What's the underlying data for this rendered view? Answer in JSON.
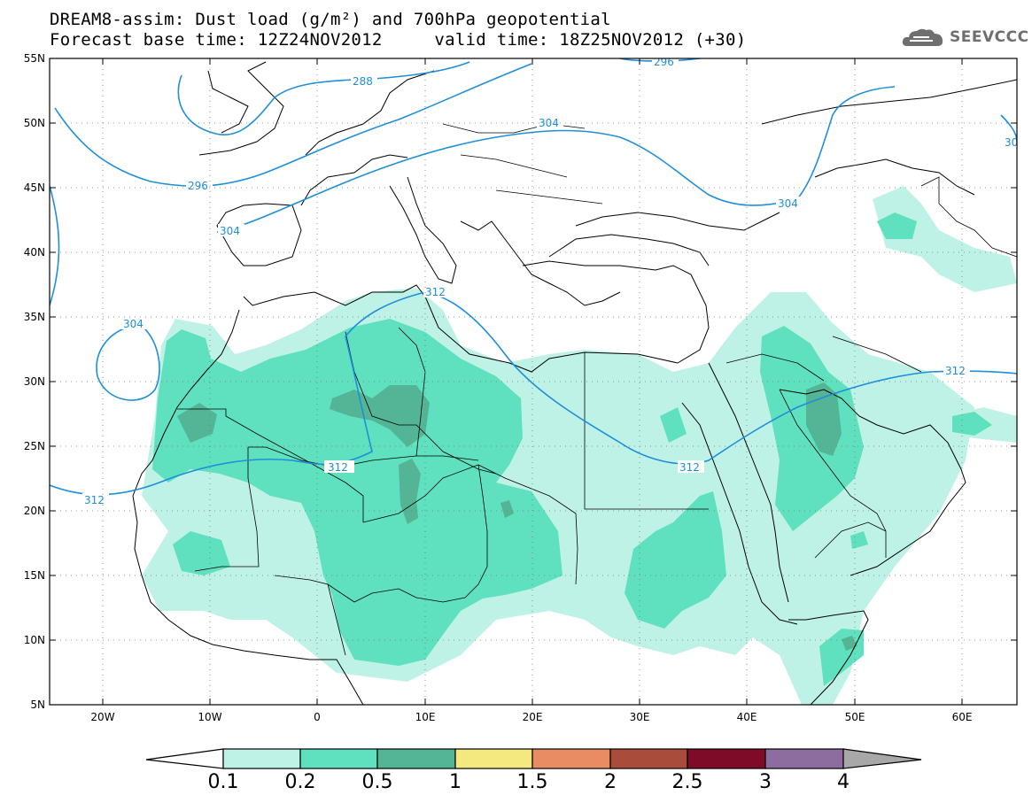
{
  "header": {
    "title_line1": "DREAM8-assim: Dust load (g/m²) and 700hPa geopotential",
    "title_line2": "Forecast base time: 12Z24NOV2012     valid time: 18Z25NOV2012 (+30)"
  },
  "brand": {
    "name": "SEEVCCC",
    "icon": "cloud-logo-icon"
  },
  "axes": {
    "lat_labels": [
      "55N",
      "50N",
      "45N",
      "40N",
      "35N",
      "30N",
      "25N",
      "20N",
      "15N",
      "10N",
      "5N"
    ],
    "lon_labels": [
      "20W",
      "10W",
      "0",
      "10E",
      "20E",
      "30E",
      "40E",
      "50E",
      "60E"
    ]
  },
  "contour_labels": [
    "296",
    "288",
    "304",
    "296",
    "304",
    "304",
    "312",
    "304",
    "312",
    "312",
    "312",
    "312",
    "30"
  ],
  "colorbar": {
    "ticks": [
      "0.1",
      "0.2",
      "0.5",
      "1",
      "1.5",
      "2",
      "2.5",
      "3",
      "4"
    ],
    "colors": [
      "#bff2e6",
      "#5fe0bf",
      "#54b496",
      "#f3e97e",
      "#e98c63",
      "#aa4c3c",
      "#7e0b27",
      "#8d6d9f",
      "#a8a8a8"
    ]
  },
  "colors": {
    "dust_light": "#bff2e6",
    "dust_mid": "#5fe0bf",
    "dust_dark": "#54b496",
    "contour": "#1e8fd8"
  }
}
